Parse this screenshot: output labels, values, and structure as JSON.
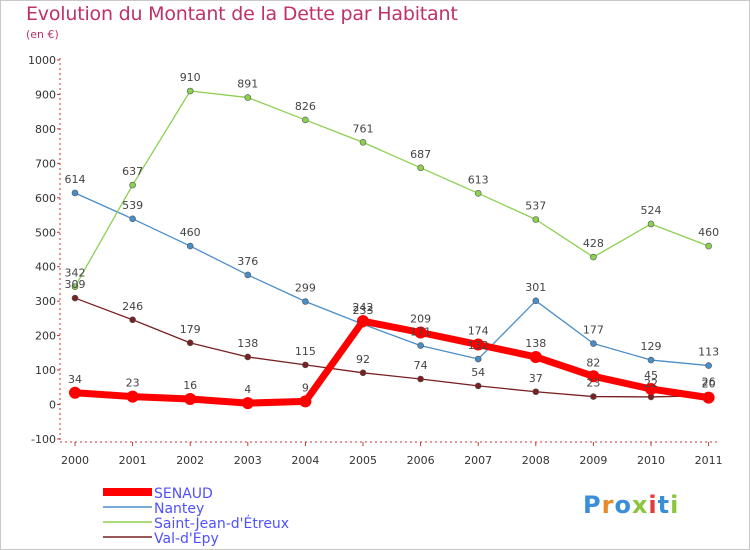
{
  "title": "Evolution du Montant de la Dette par Habitant",
  "subtitle": "(en €)",
  "logo": {
    "text": "Proxiti",
    "colors": [
      "#3a8fd8",
      "#e98a2a",
      "#3a8fd8",
      "#8cc63f",
      "#e23b3b",
      "#3a8fd8",
      "#8cc63f"
    ]
  },
  "chart_data": {
    "type": "line",
    "x": [
      "2000",
      "2001",
      "2002",
      "2003",
      "2004",
      "2005",
      "2006",
      "2007",
      "2008",
      "2009",
      "2010",
      "2011"
    ],
    "ylim": [
      -100,
      1000
    ],
    "yticks": [
      -100,
      0,
      100,
      200,
      300,
      400,
      500,
      600,
      700,
      800,
      900,
      1000
    ],
    "grid": false,
    "legend_position": "bottom-left",
    "series": [
      {
        "name": "SENAUD",
        "color": "#ff0000",
        "values": [
          34,
          23,
          16,
          4,
          9,
          242,
          209,
          174,
          138,
          82,
          45,
          20
        ]
      },
      {
        "name": "Nantey",
        "color": "#4a8ec8",
        "values": [
          614,
          539,
          460,
          376,
          299,
          233,
          171,
          132,
          301,
          177,
          129,
          113
        ]
      },
      {
        "name": "Saint-Jean-d'Étreux",
        "color": "#8cd050",
        "values": [
          342,
          637,
          910,
          891,
          826,
          761,
          687,
          613,
          537,
          428,
          524,
          460
        ]
      },
      {
        "name": "Val-d'Epy",
        "color": "#7a2020",
        "values": [
          309,
          246,
          179,
          138,
          115,
          92,
          74,
          54,
          37,
          23,
          22,
          26
        ]
      }
    ]
  }
}
